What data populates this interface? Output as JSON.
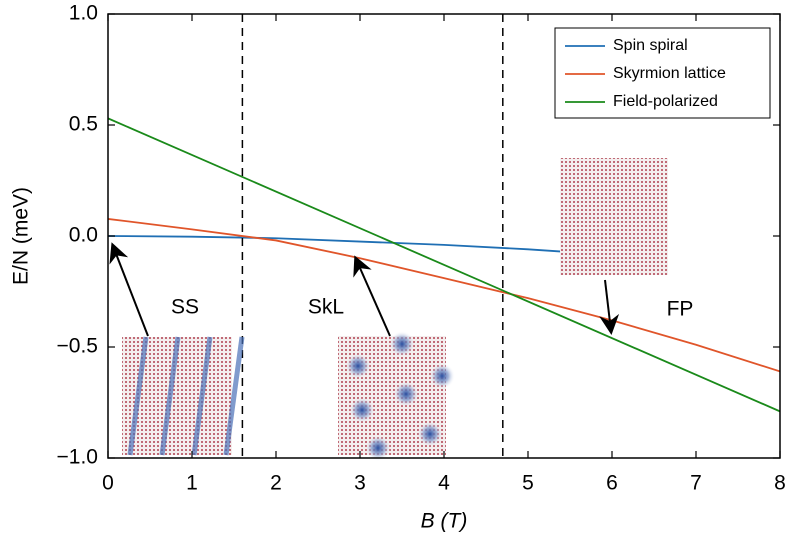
{
  "chart_data": {
    "type": "line",
    "xlabel": "B (T)",
    "ylabel": "E/N (meV)",
    "xlim": [
      0,
      8
    ],
    "xticks": [
      0,
      1,
      2,
      3,
      4,
      5,
      6,
      7,
      8
    ],
    "ylim": [
      -1.0,
      1.0
    ],
    "yticks": [
      {
        "value": -1.0,
        "label": "−1.0"
      },
      {
        "value": -0.5,
        "label": "−0.5"
      },
      {
        "value": 0.0,
        "label": "0.0"
      },
      0.5,
      {
        "value": 1.0,
        "label": "1.0"
      }
    ],
    "vlines": [
      1.6,
      4.7
    ],
    "legend": "upper right",
    "series": [
      {
        "name": "Spin spiral",
        "color": "#1f6fb4",
        "x": [
          0,
          1,
          2,
          3,
          4,
          5,
          5.4
        ],
        "values": [
          0.0,
          -0.003,
          -0.01,
          -0.025,
          -0.04,
          -0.06,
          -0.07
        ]
      },
      {
        "name": "Skyrmion lattice",
        "color": "#e0552a",
        "x": [
          0,
          1,
          2,
          3,
          4,
          5,
          6,
          7,
          8
        ],
        "values": [
          0.077,
          0.03,
          -0.02,
          -0.1,
          -0.19,
          -0.28,
          -0.38,
          -0.49,
          -0.61
        ]
      },
      {
        "name": "Field-polarized",
        "color": "#1a8a1a",
        "x": [
          0,
          8
        ],
        "values": [
          0.53,
          -0.79
        ]
      }
    ],
    "annotations": [
      "SS",
      "SkL",
      "FP"
    ]
  }
}
